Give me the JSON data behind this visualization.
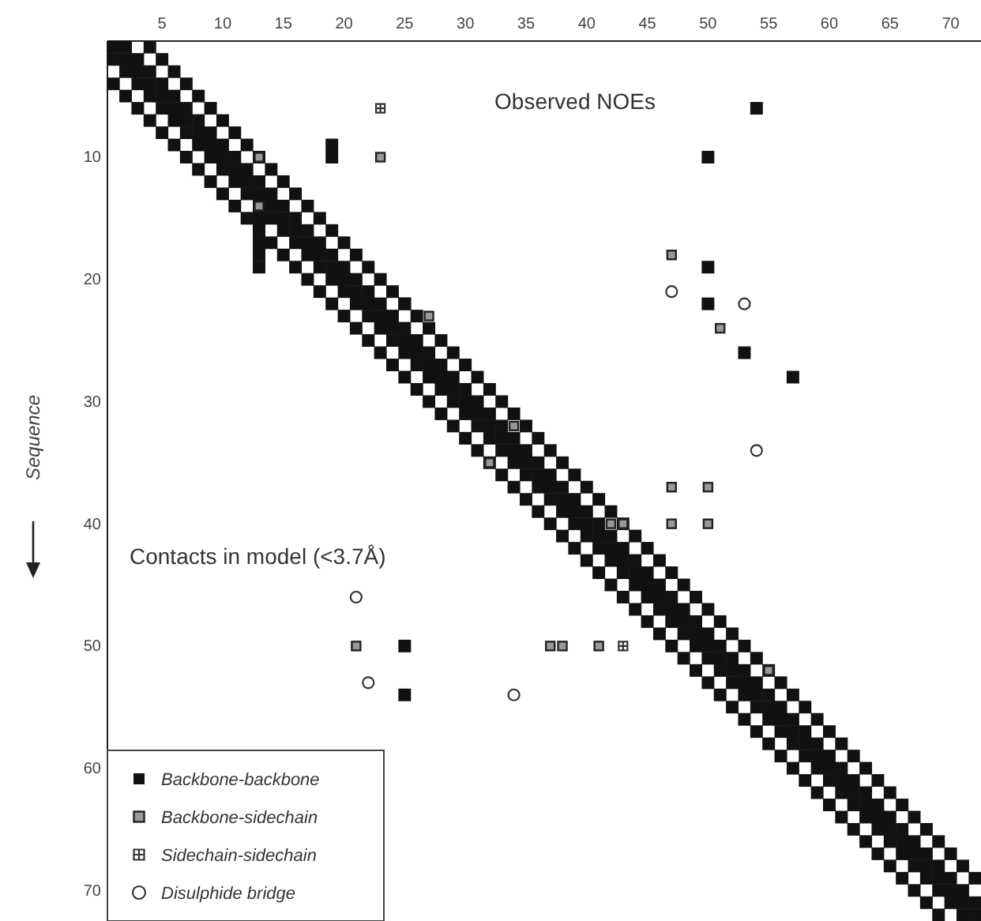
{
  "chart_data": {
    "type": "scatter",
    "ylabel": "Sequence",
    "xlim": [
      0.5,
      72.5
    ],
    "ylim": [
      72.5,
      0.5
    ],
    "xticks": [
      5,
      10,
      15,
      20,
      25,
      30,
      35,
      40,
      45,
      50,
      55,
      60,
      65,
      70
    ],
    "yticks": [
      10,
      20,
      30,
      40,
      50,
      60,
      70
    ],
    "annotations": [
      "Observed NOEs",
      "Contacts in model (<3.7Å)"
    ],
    "legend": "bottom left",
    "grid": false,
    "series": [
      {
        "name": "Backbone-backbone",
        "color": "#111111",
        "marker": "square",
        "x": [
          1,
          2,
          3,
          4,
          5,
          6,
          7,
          8,
          9,
          10,
          11,
          12,
          13,
          14,
          15,
          16,
          17,
          18,
          19,
          20,
          21,
          22,
          23,
          24,
          25,
          26,
          27,
          28,
          29,
          30,
          31,
          32,
          33,
          34,
          35,
          36,
          37,
          38,
          39,
          40,
          41,
          42,
          43,
          44,
          45,
          46,
          47,
          48,
          49,
          50,
          51,
          52,
          53,
          54,
          55,
          56,
          57,
          58,
          59,
          60,
          61,
          62,
          63,
          64,
          65,
          66,
          67,
          68,
          69,
          70,
          71,
          72,
          1,
          2,
          3,
          4,
          5,
          6,
          7,
          8,
          9,
          10,
          11,
          12,
          13,
          14,
          15,
          16,
          17,
          18,
          19,
          20,
          21,
          22,
          23,
          24,
          25,
          26,
          27,
          28,
          29,
          30,
          31,
          32,
          33,
          34,
          35,
          36,
          37,
          38,
          39,
          40,
          41,
          42,
          43,
          44,
          45,
          46,
          47,
          48,
          49,
          50,
          51,
          52,
          53,
          54,
          55,
          56,
          57,
          58,
          59,
          60,
          61,
          62,
          63,
          64,
          65,
          66,
          67,
          68,
          69,
          70,
          71,
          2,
          3,
          4,
          5,
          6,
          7,
          8,
          9,
          10,
          11,
          12,
          13,
          14,
          15,
          16,
          17,
          18,
          19,
          20,
          21,
          22,
          23,
          24,
          25,
          26,
          27,
          28,
          29,
          30,
          31,
          32,
          33,
          34,
          35,
          36,
          37,
          38,
          39,
          40,
          41,
          42,
          43,
          44,
          45,
          46,
          47,
          48,
          49,
          50,
          51,
          52,
          53,
          54,
          55,
          56,
          57,
          58,
          59,
          60,
          61,
          62,
          63,
          64,
          65,
          66,
          67,
          68,
          69,
          70,
          71,
          72,
          1,
          2,
          3,
          4,
          5,
          6,
          7,
          8,
          9,
          10,
          11,
          12,
          13,
          14,
          15,
          16,
          17,
          18,
          19,
          20,
          21,
          22,
          23,
          24,
          25,
          26,
          27,
          28,
          29,
          30,
          31,
          32,
          33,
          34,
          35,
          36,
          37,
          38,
          39,
          40,
          41,
          42,
          43,
          44,
          45,
          46,
          47,
          48,
          49,
          50,
          51,
          52,
          53,
          54,
          55,
          56,
          57,
          58,
          59,
          60,
          61,
          62,
          63,
          64,
          65,
          66,
          67,
          68,
          69,
          4,
          5,
          6,
          7,
          8,
          9,
          10,
          11,
          12,
          13,
          14,
          15,
          16,
          17,
          18,
          19,
          20,
          21,
          22,
          23,
          24,
          25,
          26,
          27,
          28,
          29,
          30,
          31,
          32,
          33,
          34,
          35,
          36,
          37,
          38,
          39,
          40,
          41,
          42,
          43,
          44,
          45,
          46,
          47,
          48,
          49,
          50,
          51,
          52,
          53,
          54,
          55,
          56,
          57,
          58,
          59,
          60,
          61,
          62,
          63,
          64,
          65,
          66,
          67,
          68,
          69,
          70,
          71,
          72,
          13,
          13,
          13,
          13,
          13,
          25,
          19,
          19,
          54,
          50,
          50,
          50,
          53,
          57,
          25,
          25
        ],
        "values": [
          1,
          2,
          3,
          4,
          5,
          6,
          7,
          8,
          9,
          10,
          11,
          12,
          13,
          14,
          15,
          16,
          17,
          18,
          19,
          20,
          21,
          22,
          23,
          24,
          25,
          26,
          27,
          28,
          29,
          30,
          31,
          32,
          33,
          34,
          35,
          36,
          37,
          38,
          39,
          40,
          41,
          42,
          43,
          44,
          45,
          46,
          47,
          48,
          49,
          50,
          51,
          52,
          53,
          54,
          55,
          56,
          57,
          58,
          59,
          60,
          61,
          62,
          63,
          64,
          65,
          66,
          67,
          68,
          69,
          70,
          71,
          72,
          2,
          3,
          4,
          5,
          6,
          7,
          8,
          9,
          10,
          11,
          12,
          13,
          14,
          15,
          16,
          17,
          18,
          19,
          20,
          21,
          22,
          23,
          24,
          25,
          26,
          27,
          28,
          29,
          30,
          31,
          32,
          33,
          34,
          35,
          36,
          37,
          38,
          39,
          40,
          41,
          42,
          43,
          44,
          45,
          46,
          47,
          48,
          49,
          50,
          51,
          52,
          53,
          54,
          55,
          56,
          57,
          58,
          59,
          60,
          61,
          62,
          63,
          64,
          65,
          66,
          67,
          68,
          69,
          70,
          71,
          72,
          1,
          2,
          3,
          4,
          5,
          6,
          7,
          8,
          9,
          10,
          11,
          12,
          13,
          14,
          15,
          16,
          17,
          18,
          19,
          20,
          21,
          22,
          23,
          24,
          25,
          26,
          27,
          28,
          29,
          30,
          31,
          32,
          33,
          34,
          35,
          36,
          37,
          38,
          39,
          40,
          41,
          42,
          43,
          44,
          45,
          46,
          47,
          48,
          49,
          50,
          51,
          52,
          53,
          54,
          55,
          56,
          57,
          58,
          59,
          60,
          61,
          62,
          63,
          64,
          65,
          66,
          67,
          68,
          69,
          70,
          71,
          4,
          5,
          6,
          7,
          8,
          9,
          10,
          11,
          12,
          13,
          14,
          15,
          16,
          17,
          18,
          19,
          20,
          21,
          22,
          23,
          24,
          25,
          26,
          27,
          28,
          29,
          30,
          31,
          32,
          33,
          34,
          35,
          36,
          37,
          38,
          39,
          40,
          41,
          42,
          43,
          44,
          45,
          46,
          47,
          48,
          49,
          50,
          51,
          52,
          53,
          54,
          55,
          56,
          57,
          58,
          59,
          60,
          61,
          62,
          63,
          64,
          65,
          66,
          67,
          68,
          69,
          70,
          71,
          72,
          1,
          2,
          3,
          4,
          5,
          6,
          7,
          8,
          9,
          10,
          11,
          12,
          13,
          14,
          15,
          16,
          17,
          18,
          19,
          20,
          21,
          22,
          23,
          24,
          25,
          26,
          27,
          28,
          29,
          30,
          31,
          32,
          33,
          34,
          35,
          36,
          37,
          38,
          39,
          40,
          41,
          42,
          43,
          44,
          45,
          46,
          47,
          48,
          49,
          50,
          51,
          52,
          53,
          54,
          55,
          56,
          57,
          58,
          59,
          60,
          61,
          62,
          63,
          64,
          65,
          66,
          67,
          68,
          69,
          15,
          16,
          17,
          18,
          19,
          22,
          9,
          10,
          6,
          10,
          19,
          22,
          26,
          28,
          50,
          54
        ]
      },
      {
        "name": "Backbone-sidechain",
        "color": "#999999",
        "marker": "square",
        "x": [
          23,
          13,
          13,
          47,
          51,
          27,
          34,
          32,
          47,
          50,
          47,
          50,
          42,
          43,
          37,
          38,
          41,
          55,
          21
        ],
        "values": [
          10,
          10,
          14,
          18,
          24,
          23,
          32,
          35,
          37,
          37,
          40,
          40,
          40,
          40,
          50,
          50,
          50,
          52,
          50
        ]
      },
      {
        "name": "Sidechain-sidechain",
        "color": "#333333",
        "marker": "cross",
        "x": [
          23,
          43
        ],
        "values": [
          6,
          50
        ]
      },
      {
        "name": "Disulphide bridge",
        "color": "#333333",
        "marker": "circle",
        "x": [
          47,
          53,
          54,
          21,
          22,
          34
        ],
        "values": [
          21,
          22,
          34,
          46,
          53,
          54
        ]
      }
    ]
  }
}
